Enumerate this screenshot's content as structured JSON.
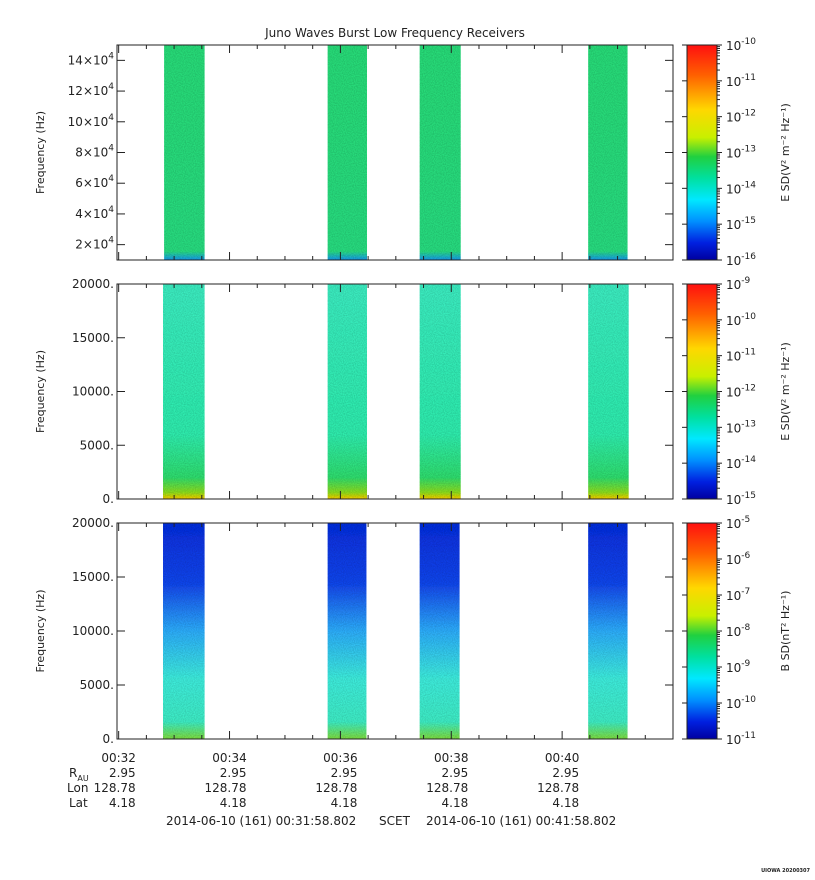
{
  "chart_data": [
    {
      "type": "heatmap",
      "title": "Juno Waves Burst Low Frequency Receivers",
      "ylabel": "Frequency (Hz)",
      "ylim": [
        10000,
        150000
      ],
      "yticks": [
        {
          "v": 20000,
          "m": "2×10",
          "e": "4"
        },
        {
          "v": 40000,
          "m": "4×10",
          "e": "4"
        },
        {
          "v": 60000,
          "m": "6×10",
          "e": "4"
        },
        {
          "v": 80000,
          "m": "8×10",
          "e": "4"
        },
        {
          "v": 100000,
          "m": "10×10",
          "e": "4"
        },
        {
          "v": 120000,
          "m": "12×10",
          "e": "4"
        },
        {
          "v": 140000,
          "m": "14×10",
          "e": "4"
        }
      ],
      "colorbar_label": "E SD(V² m⁻² Hz⁻¹)",
      "colorbar_exponents": [
        "-10",
        "-11",
        "-12",
        "-13",
        "-14",
        "-15",
        "-16"
      ],
      "bursts": [
        {
          "start_min": 32.82,
          "end_min": 33.55
        },
        {
          "start_min": 35.77,
          "end_min": 36.48
        },
        {
          "start_min": 37.43,
          "end_min": 38.17
        },
        {
          "start_min": 40.47,
          "end_min": 41.18
        }
      ],
      "colors": {
        "fill": "#2adf7a",
        "base": "#1a9cf0"
      }
    },
    {
      "type": "heatmap",
      "ylabel": "Frequency (Hz)",
      "ylim": [
        0,
        20000
      ],
      "yticks": [
        {
          "v": 0,
          "t": "0."
        },
        {
          "v": 5000,
          "t": "5000."
        },
        {
          "v": 10000,
          "t": "10000."
        },
        {
          "v": 15000,
          "t": "15000."
        },
        {
          "v": 20000,
          "t": "20000."
        }
      ],
      "colorbar_label": "E SD(V² m⁻² Hz⁻¹)",
      "colorbar_exponents": [
        "-9",
        "-10",
        "-11",
        "-12",
        "-13",
        "-14",
        "-15"
      ],
      "bursts": [
        {
          "start_min": 32.8,
          "end_min": 33.55
        },
        {
          "start_min": 35.77,
          "end_min": 36.48
        },
        {
          "start_min": 37.43,
          "end_min": 38.17
        },
        {
          "start_min": 40.47,
          "end_min": 41.2
        }
      ],
      "colors": {
        "fill": "#3df0c4",
        "base": "#8fe020",
        "floor": "#ffd200"
      }
    },
    {
      "type": "heatmap",
      "ylabel": "Frequency (Hz)",
      "ylim": [
        0,
        20000
      ],
      "yticks": [
        {
          "v": 0,
          "t": "0."
        },
        {
          "v": 5000,
          "t": "5000."
        },
        {
          "v": 10000,
          "t": "10000."
        },
        {
          "v": 15000,
          "t": "15000."
        },
        {
          "v": 20000,
          "t": "20000."
        }
      ],
      "colorbar_label": "B SD(nT² Hz⁻¹)",
      "colorbar_exponents": [
        "-5",
        "-6",
        "-7",
        "-8",
        "-9",
        "-10",
        "-11"
      ],
      "bursts": [
        {
          "start_min": 32.8,
          "end_min": 33.55
        },
        {
          "start_min": 35.77,
          "end_min": 36.47
        },
        {
          "start_min": 37.43,
          "end_min": 38.15
        },
        {
          "start_min": 40.47,
          "end_min": 41.18
        }
      ],
      "colors": {
        "top": "#1030e0",
        "mid": "#2fb0ff",
        "low": "#3ff0d8",
        "base": "#7fe040"
      }
    }
  ],
  "time_axis": {
    "xlim_min": [
      31.97,
      42.0
    ],
    "ticks": [
      {
        "min": 32,
        "label": "00:32"
      },
      {
        "min": 34,
        "label": "00:34"
      },
      {
        "min": 36,
        "label": "00:36"
      },
      {
        "min": 38,
        "label": "00:38"
      },
      {
        "min": 40,
        "label": "00:40"
      }
    ]
  },
  "ephemeris": {
    "rows": [
      {
        "label": "R",
        "sub": "AU",
        "values": [
          "2.95",
          "2.95",
          "2.95",
          "2.95",
          "2.95"
        ]
      },
      {
        "label": "Lon",
        "values": [
          "128.78",
          "128.78",
          "128.78",
          "128.78",
          "128.78"
        ]
      },
      {
        "label": "Lat",
        "values": [
          "4.18",
          "4.18",
          "4.18",
          "4.18",
          "4.18"
        ]
      }
    ]
  },
  "footer": {
    "start": "2014-06-10 (161) 00:31:58.802",
    "mid": "SCET",
    "end": "2014-06-10 (161) 00:41:58.802",
    "stamp": "UIOWA 20200307"
  }
}
